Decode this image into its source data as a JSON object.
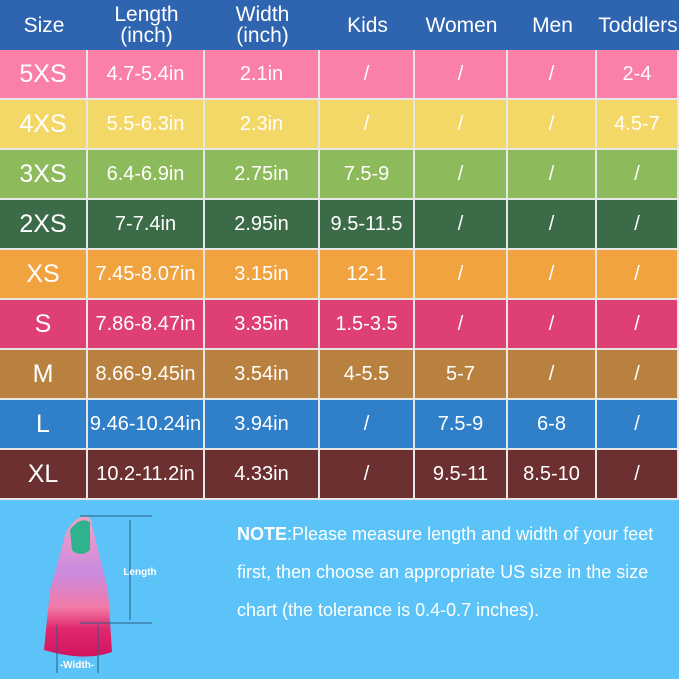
{
  "header_color": "#2f64b1",
  "columns": [
    "Size",
    "Length\n(inch)",
    "Width\n(inch)",
    "Kids",
    "Women",
    "Men",
    "Toddlers"
  ],
  "rows": [
    {
      "color": "#fa80a7",
      "cells": [
        "5XS",
        "4.7-5.4in",
        "2.1in",
        "/",
        "/",
        "/",
        "2-4"
      ]
    },
    {
      "color": "#f3d767",
      "cells": [
        "4XS",
        "5.5-6.3in",
        "2.3in",
        "/",
        "/",
        "/",
        "4.5-7"
      ]
    },
    {
      "color": "#8dba5b",
      "cells": [
        "3XS",
        "6.4-6.9in",
        "2.75in",
        "7.5-9",
        "/",
        "/",
        "/"
      ]
    },
    {
      "color": "#3c6b47",
      "cells": [
        "2XS",
        "7-7.4in",
        "2.95in",
        "9.5-11.5",
        "/",
        "/",
        "/"
      ]
    },
    {
      "color": "#f1a340",
      "cells": [
        "XS",
        "7.45-8.07in",
        "3.15in",
        "12-1",
        "/",
        "/",
        "/"
      ]
    },
    {
      "color": "#de4073",
      "cells": [
        "S",
        "7.86-8.47in",
        "3.35in",
        "1.5-3.5",
        "/",
        "/",
        "/"
      ]
    },
    {
      "color": "#b9813f",
      "cells": [
        "M",
        "8.66-9.45in",
        "3.54in",
        "4-5.5",
        "5-7",
        "/",
        "/"
      ]
    },
    {
      "color": "#2f7fc9",
      "cells": [
        "L",
        "9.46-10.24in",
        "3.94in",
        "/",
        "7.5-9",
        "6-8",
        "/"
      ]
    },
    {
      "color": "#6c3030",
      "cells": [
        "XL",
        "10.2-11.2in",
        "4.33in",
        "/",
        "9.5-11",
        "8.5-10",
        "/"
      ]
    }
  ],
  "note": {
    "label": "NOTE",
    "text": ":Please measure length and width of your feet first, then choose an appropriate US size in the size chart (the tolerance is 0.4-0.7 inches)."
  },
  "diagram": {
    "length_label": "Length",
    "width_label": "-Width-"
  }
}
